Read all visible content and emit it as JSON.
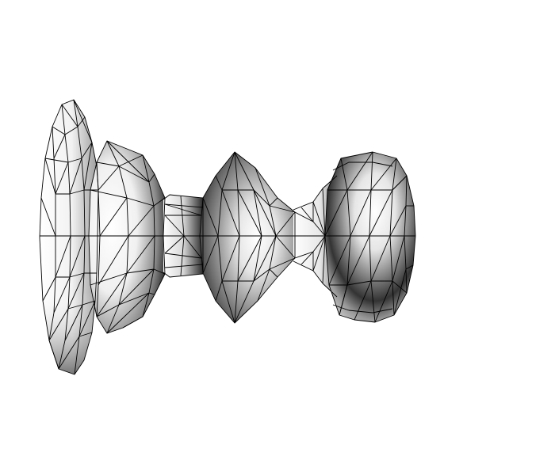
{
  "scene": {
    "object": "wireframe-lathe-mesh",
    "render_style": "gouraud-shaded-wireframe",
    "colors": {
      "background": "#ffffff",
      "shade_light": "#ffffff",
      "shade_mid": "#b8b8b8",
      "shade_dark": "#1a1a1a",
      "wire": "#000000"
    }
  }
}
